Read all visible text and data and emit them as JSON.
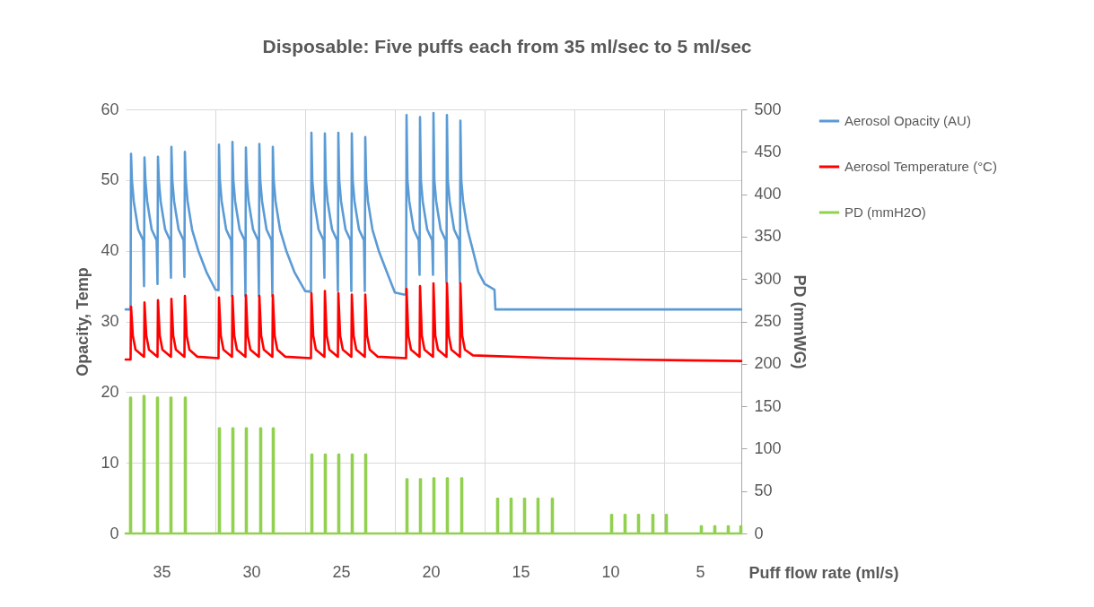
{
  "chart_data": {
    "type": "line",
    "title": "Disposable: Five puffs each from 35 ml/sec to 5 ml/sec",
    "xlabel": "Puff flow rate (ml/s)",
    "ylabel": "Opacity, Temp",
    "y2label": "PD (mmWG)",
    "xlim": [
      37,
      2.7
    ],
    "xticks": [
      35,
      {
        "value": 32,
        "label": null
      },
      30,
      {
        "value": 27,
        "label": null
      },
      25,
      {
        "value": 22,
        "label": null
      },
      20,
      {
        "value": 17,
        "label": null
      },
      15,
      {
        "value": 12,
        "label": null
      },
      10,
      {
        "value": 7,
        "label": null
      },
      5
    ],
    "ylim": [
      0,
      60
    ],
    "yticks": [
      0,
      10,
      20,
      30,
      40,
      50,
      60
    ],
    "y2lim": [
      0,
      500
    ],
    "y2ticks": [
      0,
      50,
      100,
      150,
      200,
      250,
      300,
      350,
      400,
      450,
      500
    ],
    "grid": true,
    "legend": "right",
    "marker": "none",
    "line_style": "solid",
    "series": [
      {
        "name": "Aerosol Opacity (AU)",
        "color": "#5b9bd5",
        "x": [
          37,
          36.725,
          36.7,
          36.65,
          36.55,
          36.3,
          36.025,
          35.975,
          35.95,
          35.9,
          35.8,
          35.55,
          35.275,
          35.225,
          35.2,
          35.15,
          35.05,
          34.8,
          34.525,
          34.475,
          34.45,
          34.4,
          34.3,
          34.05,
          33.775,
          33.725,
          33.7,
          33.65,
          33.55,
          33.3,
          32.95,
          32.5,
          32,
          31.825,
          31.8,
          31.75,
          31.65,
          31.4,
          31.125,
          31.075,
          31.05,
          31,
          30.9,
          30.65,
          30.375,
          30.325,
          30.3,
          30.25,
          30.15,
          29.9,
          29.625,
          29.575,
          29.55,
          29.5,
          29.4,
          29.15,
          28.875,
          28.825,
          28.8,
          28.75,
          28.65,
          28.4,
          28.05,
          27.6,
          27,
          26.675,
          26.65,
          26.6,
          26.5,
          26.25,
          25.975,
          25.925,
          25.9,
          25.85,
          25.75,
          25.5,
          25.225,
          25.175,
          25.15,
          25.1,
          25,
          24.75,
          24.475,
          24.425,
          24.4,
          24.35,
          24.25,
          24,
          23.725,
          23.675,
          23.65,
          23.6,
          23.5,
          23.25,
          22.9,
          22.45,
          22,
          21.5,
          21.375,
          21.35,
          21.3,
          21.2,
          20.95,
          20.675,
          20.625,
          20.6,
          20.55,
          20.45,
          20.2,
          19.925,
          19.875,
          19.85,
          19.8,
          19.7,
          19.45,
          19.175,
          19.125,
          19.1,
          19.05,
          18.95,
          18.7,
          18.425,
          18.375,
          18.35,
          18.3,
          18.2,
          17.95,
          17.65,
          17.35,
          17,
          16.45,
          16.4,
          2.7
        ],
        "values": [
          31.7,
          31.7,
          53.7,
          50,
          47,
          43,
          41.5,
          35.0,
          53.2,
          50,
          47,
          43,
          41.5,
          35.3,
          53.3,
          50,
          47,
          43,
          41.5,
          36.2,
          54.7,
          50,
          47,
          43,
          41.5,
          36.3,
          54.0,
          50,
          47,
          43,
          40,
          37,
          34.5,
          34.4,
          55.0,
          50,
          47,
          43,
          41.5,
          33.6,
          55.4,
          50,
          47,
          43,
          41.5,
          33.6,
          54.6,
          50,
          47,
          43,
          41.5,
          33.6,
          55.1,
          50,
          47,
          43,
          41.5,
          33.6,
          54.7,
          50,
          47,
          43,
          40,
          37,
          34.3,
          34.2,
          56.7,
          50,
          47,
          43,
          41.5,
          36.2,
          56.6,
          50,
          47,
          43,
          41.5,
          34.3,
          56.7,
          50,
          47,
          43,
          41.5,
          34.3,
          56.6,
          50,
          47,
          43,
          41.5,
          34.3,
          56.1,
          50,
          47,
          43,
          40,
          37,
          34.1,
          33.8,
          33.8,
          59.2,
          50,
          47,
          43,
          41.5,
          36.6,
          58.9,
          50,
          47,
          43,
          41.5,
          36.6,
          59.5,
          50,
          47,
          43,
          41.5,
          35.5,
          59.2,
          50,
          47,
          43,
          41.5,
          35.5,
          58.4,
          50,
          47,
          43,
          40,
          37,
          35.3,
          34.5,
          31.7,
          31.7
        ]
      },
      {
        "name": "Aerosol Temperature (°C)",
        "color": "#ff0000",
        "x": [
          37,
          36.725,
          36.7,
          36.6,
          36.45,
          35.975,
          35.95,
          35.85,
          35.7,
          35.225,
          35.2,
          35.1,
          34.95,
          34.475,
          34.45,
          34.35,
          34.2,
          33.725,
          33.7,
          33.6,
          33.45,
          33,
          31.825,
          31.8,
          31.7,
          31.55,
          31.075,
          31.05,
          30.95,
          30.8,
          30.325,
          30.3,
          30.2,
          30.05,
          29.575,
          29.55,
          29.45,
          29.3,
          28.825,
          28.8,
          28.7,
          28.55,
          28.1,
          26.675,
          26.65,
          26.55,
          26.4,
          25.925,
          25.9,
          25.8,
          25.65,
          25.175,
          25.15,
          25.05,
          24.9,
          24.425,
          24.4,
          24.3,
          24.15,
          23.675,
          23.65,
          23.55,
          23.4,
          22.95,
          21.375,
          21.35,
          21.25,
          21.1,
          20.625,
          20.6,
          20.5,
          20.35,
          19.875,
          19.85,
          19.75,
          19.6,
          19.125,
          19.1,
          19,
          18.85,
          18.375,
          18.35,
          18.25,
          18.1,
          17.65,
          13,
          9,
          2.7
        ],
        "values": [
          24.6,
          24.6,
          32.1,
          28,
          26,
          25,
          32.7,
          28,
          26,
          25,
          33.0,
          28,
          26,
          25,
          33.2,
          28,
          26,
          25,
          33.6,
          28,
          26,
          25,
          24.8,
          33.4,
          28,
          26,
          25,
          33.6,
          28,
          26,
          25,
          33.7,
          28,
          26,
          25,
          33.6,
          28,
          26,
          25,
          33.7,
          28,
          26,
          25,
          24.8,
          34.0,
          28,
          26,
          25,
          34.3,
          28,
          26,
          25,
          34.0,
          28,
          26,
          25,
          33.8,
          28,
          26,
          25,
          33.8,
          28,
          26,
          25,
          24.8,
          34.6,
          28,
          26,
          25,
          35.0,
          28,
          26,
          25,
          35.4,
          28,
          26,
          25,
          35.4,
          28,
          26,
          25,
          35.4,
          28,
          26,
          25.2,
          24.8,
          24.6,
          24.4
        ]
      },
      {
        "name": "PD (mmH2O)",
        "color": "#92d050",
        "axis": "y2",
        "x": [
          37,
          36.75,
          36.75,
          36.7,
          36.7,
          36,
          36,
          35.95,
          35.95,
          35.25,
          35.25,
          35.2,
          35.2,
          34.5,
          34.5,
          34.45,
          34.45,
          33.7,
          33.7,
          33.65,
          33.65,
          31.8,
          31.8,
          31.75,
          31.75,
          31.05,
          31.05,
          31,
          31,
          30.3,
          30.3,
          30.25,
          30.25,
          29.5,
          29.5,
          29.45,
          29.45,
          28.8,
          28.8,
          28.75,
          28.75,
          26.65,
          26.65,
          26.6,
          26.6,
          25.9,
          25.9,
          25.85,
          25.85,
          25.15,
          25.15,
          25.1,
          25.1,
          24.4,
          24.4,
          24.35,
          24.35,
          23.65,
          23.65,
          23.6,
          23.6,
          21.35,
          21.35,
          21.3,
          21.3,
          20.6,
          20.6,
          20.55,
          20.55,
          19.85,
          19.85,
          19.8,
          19.8,
          19.1,
          19.1,
          19.05,
          19.05,
          18.3,
          18.3,
          18.25,
          18.25,
          16.3,
          16.3,
          16.25,
          16.25,
          15.55,
          15.55,
          15.5,
          15.5,
          14.8,
          14.8,
          14.75,
          14.75,
          14.05,
          14.05,
          14,
          14,
          13.25,
          13.25,
          13.2,
          13.2,
          9.95,
          9.95,
          9.9,
          9.9,
          9.2,
          9.2,
          9.15,
          9.15,
          8.45,
          8.45,
          8.4,
          8.4,
          7.65,
          7.65,
          7.6,
          7.6,
          6.9,
          6.9,
          6.85,
          6.85,
          4.95,
          4.95,
          4.9,
          4.9,
          4.2,
          4.2,
          4.15,
          4.15,
          3.45,
          3.45,
          3.4,
          3.4,
          2.75,
          2.75,
          2.7,
          2.7
        ],
        "values": [
          0,
          0,
          160,
          160,
          0,
          0,
          162,
          162,
          0,
          0,
          160,
          160,
          0,
          0,
          160,
          160,
          0,
          0,
          160,
          160,
          0,
          0,
          124,
          124,
          0,
          0,
          124,
          124,
          0,
          0,
          124,
          124,
          0,
          0,
          124,
          124,
          0,
          0,
          124,
          124,
          0,
          0,
          93,
          93,
          0,
          0,
          93,
          93,
          0,
          0,
          93,
          93,
          0,
          0,
          93,
          93,
          0,
          0,
          93,
          93,
          0,
          0,
          64,
          64,
          0,
          0,
          64,
          64,
          0,
          0,
          65,
          65,
          0,
          0,
          65,
          65,
          0,
          0,
          65,
          65,
          0,
          0,
          41,
          41,
          0,
          0,
          41,
          41,
          0,
          0,
          41,
          41,
          0,
          0,
          41,
          41,
          0,
          0,
          41,
          41,
          0,
          0,
          22,
          22,
          0,
          0,
          22,
          22,
          0,
          0,
          22,
          22,
          0,
          0,
          22,
          22,
          0,
          0,
          22,
          22,
          0,
          0,
          8.5,
          8.5,
          0,
          0,
          8.5,
          8.5,
          0,
          0,
          8.5,
          8.5,
          0,
          0,
          8.5,
          8.5,
          0
        ]
      }
    ]
  }
}
